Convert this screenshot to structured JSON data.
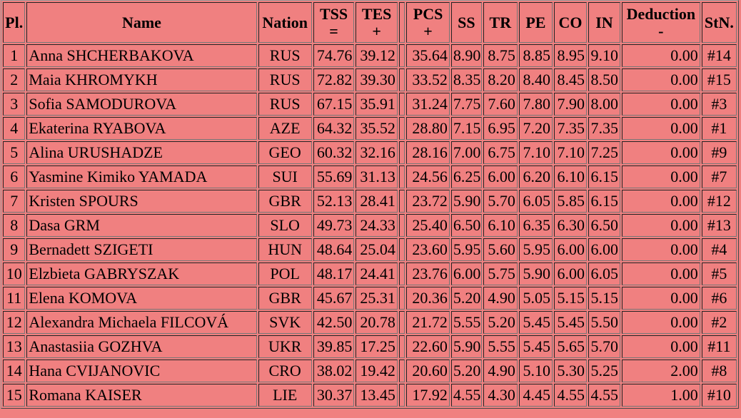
{
  "table": {
    "header": [
      [
        "Pl."
      ],
      [
        "Name"
      ],
      [
        "Nation"
      ],
      [
        "TSS",
        "="
      ],
      [
        "TES",
        "+"
      ],
      [
        "PCS",
        "+"
      ],
      [
        "SS"
      ],
      [
        "TR"
      ],
      [
        "PE"
      ],
      [
        "CO"
      ],
      [
        "IN"
      ],
      [
        "Deduction",
        "-"
      ],
      [
        "StN."
      ]
    ],
    "rows": [
      [
        "1",
        "Anna SHCHERBAKOVA",
        "RUS",
        "74.76",
        "39.12",
        "35.64",
        "8.90",
        "8.75",
        "8.85",
        "8.95",
        "9.10",
        "0.00",
        "#14"
      ],
      [
        "2",
        "Maia KHROMYKH",
        "RUS",
        "72.82",
        "39.30",
        "33.52",
        "8.35",
        "8.20",
        "8.40",
        "8.45",
        "8.50",
        "0.00",
        "#15"
      ],
      [
        "3",
        "Sofia SAMODUROVA",
        "RUS",
        "67.15",
        "35.91",
        "31.24",
        "7.75",
        "7.60",
        "7.80",
        "7.90",
        "8.00",
        "0.00",
        "#3"
      ],
      [
        "4",
        "Ekaterina RYABOVA",
        "AZE",
        "64.32",
        "35.52",
        "28.80",
        "7.15",
        "6.95",
        "7.20",
        "7.35",
        "7.35",
        "0.00",
        "#1"
      ],
      [
        "5",
        "Alina URUSHADZE",
        "GEO",
        "60.32",
        "32.16",
        "28.16",
        "7.00",
        "6.75",
        "7.10",
        "7.10",
        "7.25",
        "0.00",
        "#9"
      ],
      [
        "6",
        "Yasmine Kimiko YAMADA",
        "SUI",
        "55.69",
        "31.13",
        "24.56",
        "6.25",
        "6.00",
        "6.20",
        "6.10",
        "6.15",
        "0.00",
        "#7"
      ],
      [
        "7",
        "Kristen SPOURS",
        "GBR",
        "52.13",
        "28.41",
        "23.72",
        "5.90",
        "5.70",
        "6.05",
        "5.85",
        "6.15",
        "0.00",
        "#12"
      ],
      [
        "8",
        "Dasa GRM",
        "SLO",
        "49.73",
        "24.33",
        "25.40",
        "6.50",
        "6.10",
        "6.35",
        "6.30",
        "6.50",
        "0.00",
        "#13"
      ],
      [
        "9",
        "Bernadett SZIGETI",
        "HUN",
        "48.64",
        "25.04",
        "23.60",
        "5.95",
        "5.60",
        "5.95",
        "6.00",
        "6.00",
        "0.00",
        "#4"
      ],
      [
        "10",
        "Elzbieta GABRYSZAK",
        "POL",
        "48.17",
        "24.41",
        "23.76",
        "6.00",
        "5.75",
        "5.90",
        "6.00",
        "6.05",
        "0.00",
        "#5"
      ],
      [
        "11",
        "Elena KOMOVA",
        "GBR",
        "45.67",
        "25.31",
        "20.36",
        "5.20",
        "4.90",
        "5.05",
        "5.15",
        "5.15",
        "0.00",
        "#6"
      ],
      [
        "12",
        "Alexandra Michaela FILCOVÁ",
        "SVK",
        "42.50",
        "20.78",
        "21.72",
        "5.55",
        "5.20",
        "5.45",
        "5.45",
        "5.50",
        "0.00",
        "#2"
      ],
      [
        "13",
        "Anastasiia GOZHVA",
        "UKR",
        "39.85",
        "17.25",
        "22.60",
        "5.90",
        "5.55",
        "5.45",
        "5.65",
        "5.70",
        "0.00",
        "#11"
      ],
      [
        "14",
        "Hana CVIJANOVIC",
        "CRO",
        "38.02",
        "19.42",
        "20.60",
        "5.20",
        "4.90",
        "5.10",
        "5.30",
        "5.25",
        "2.00",
        "#8"
      ],
      [
        "15",
        "Romana KAISER",
        "LIE",
        "30.37",
        "13.45",
        "17.92",
        "4.55",
        "4.30",
        "4.45",
        "4.55",
        "4.55",
        "1.00",
        "#10"
      ]
    ]
  }
}
